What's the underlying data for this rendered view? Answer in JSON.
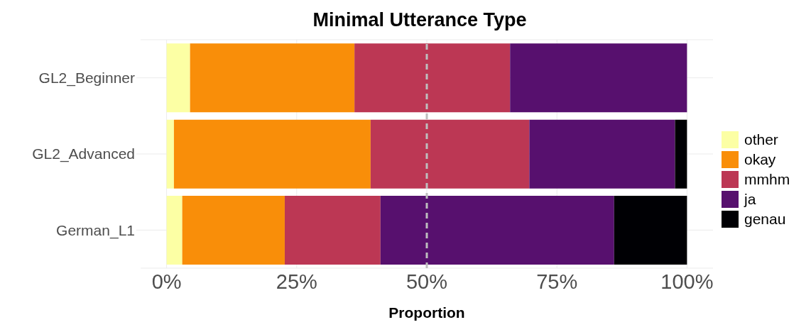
{
  "chart_data": {
    "type": "bar",
    "orientation": "horizontal",
    "stacked": true,
    "title": "Minimal Utterance Type",
    "xlabel": "Proportion",
    "categories": [
      "GL2_Beginner",
      "GL2_Advanced",
      "German_L1"
    ],
    "series": [
      {
        "name": "other",
        "color": "#fcffa4",
        "values": [
          4.5,
          1.4,
          3.0
        ]
      },
      {
        "name": "okay",
        "color": "#f98e09",
        "values": [
          31.6,
          37.8,
          19.7
        ]
      },
      {
        "name": "mmhm",
        "color": "#bc3754",
        "values": [
          29.9,
          30.5,
          18.4
        ]
      },
      {
        "name": "ja",
        "color": "#57106e",
        "values": [
          34.0,
          28.0,
          44.9
        ]
      },
      {
        "name": "genau",
        "color": "#000004",
        "values": [
          0,
          2.3,
          14.0
        ]
      }
    ],
    "xlim": [
      -5,
      105
    ],
    "xticks": [
      {
        "value": 0,
        "label": "0%"
      },
      {
        "value": 25,
        "label": "25%"
      },
      {
        "value": 50,
        "label": "50%"
      },
      {
        "value": 75,
        "label": "75%"
      },
      {
        "value": 100,
        "label": "100%"
      }
    ],
    "ref_lines": [
      {
        "axis": "x",
        "value": 50,
        "color": "#bebebe",
        "line_style": "dashed"
      }
    ],
    "grid": true,
    "legend": "right"
  }
}
